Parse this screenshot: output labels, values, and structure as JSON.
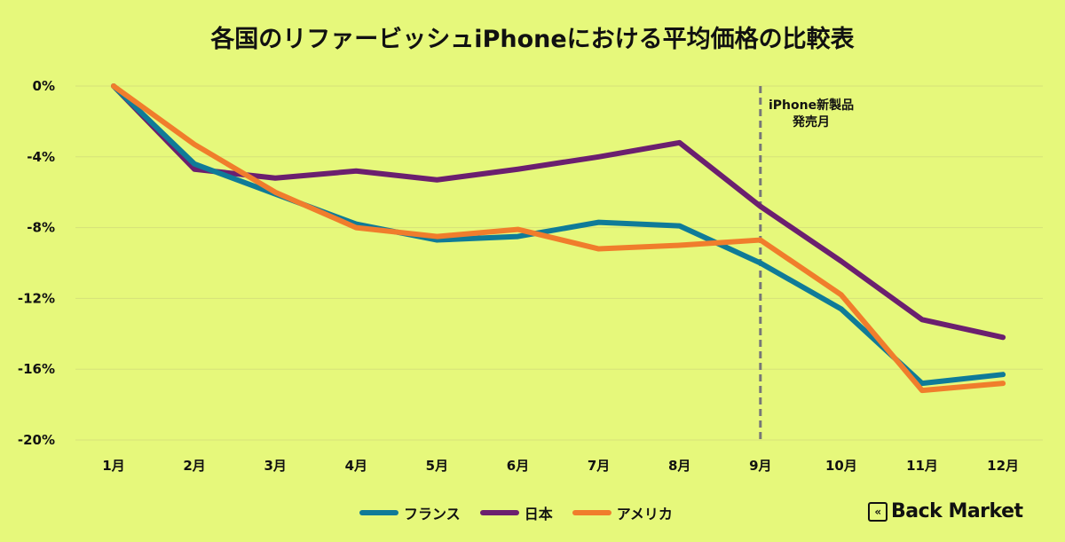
{
  "chart_data": {
    "type": "line",
    "title": "各国のリファービッシュiPhoneにおける平均価格の比較表",
    "categories": [
      "1月",
      "2月",
      "3月",
      "4月",
      "5月",
      "6月",
      "7月",
      "8月",
      "9月",
      "10月",
      "11月",
      "12月"
    ],
    "yticks": [
      "0%",
      "-4%",
      "-8%",
      "-12%",
      "-16%",
      "-20%"
    ],
    "ytick_values": [
      0,
      -4,
      -8,
      -12,
      -16,
      -20
    ],
    "ylim": [
      -20,
      0
    ],
    "grid": true,
    "legend": "bottom",
    "annotation": {
      "category": "9月",
      "line1": "iPhone新製品",
      "line2": "発売月"
    },
    "series": [
      {
        "name": "フランス",
        "color": "#0f7b98",
        "values": [
          0,
          -4.4,
          -6.1,
          -7.8,
          -8.7,
          -8.5,
          -7.7,
          -7.9,
          -10.0,
          -12.6,
          -16.8,
          -16.3
        ]
      },
      {
        "name": "日本",
        "color": "#6b1f6f",
        "values": [
          0,
          -4.7,
          -5.2,
          -4.8,
          -5.3,
          -4.7,
          -4.0,
          -3.2,
          -6.8,
          -9.9,
          -13.2,
          -14.2
        ]
      },
      {
        "name": "アメリカ",
        "color": "#f07d2c",
        "values": [
          0,
          -3.3,
          -6.0,
          -8.0,
          -8.5,
          -8.1,
          -9.2,
          -9.0,
          -8.7,
          -11.8,
          -17.2,
          -16.8
        ]
      }
    ]
  },
  "brand": "Back Market"
}
